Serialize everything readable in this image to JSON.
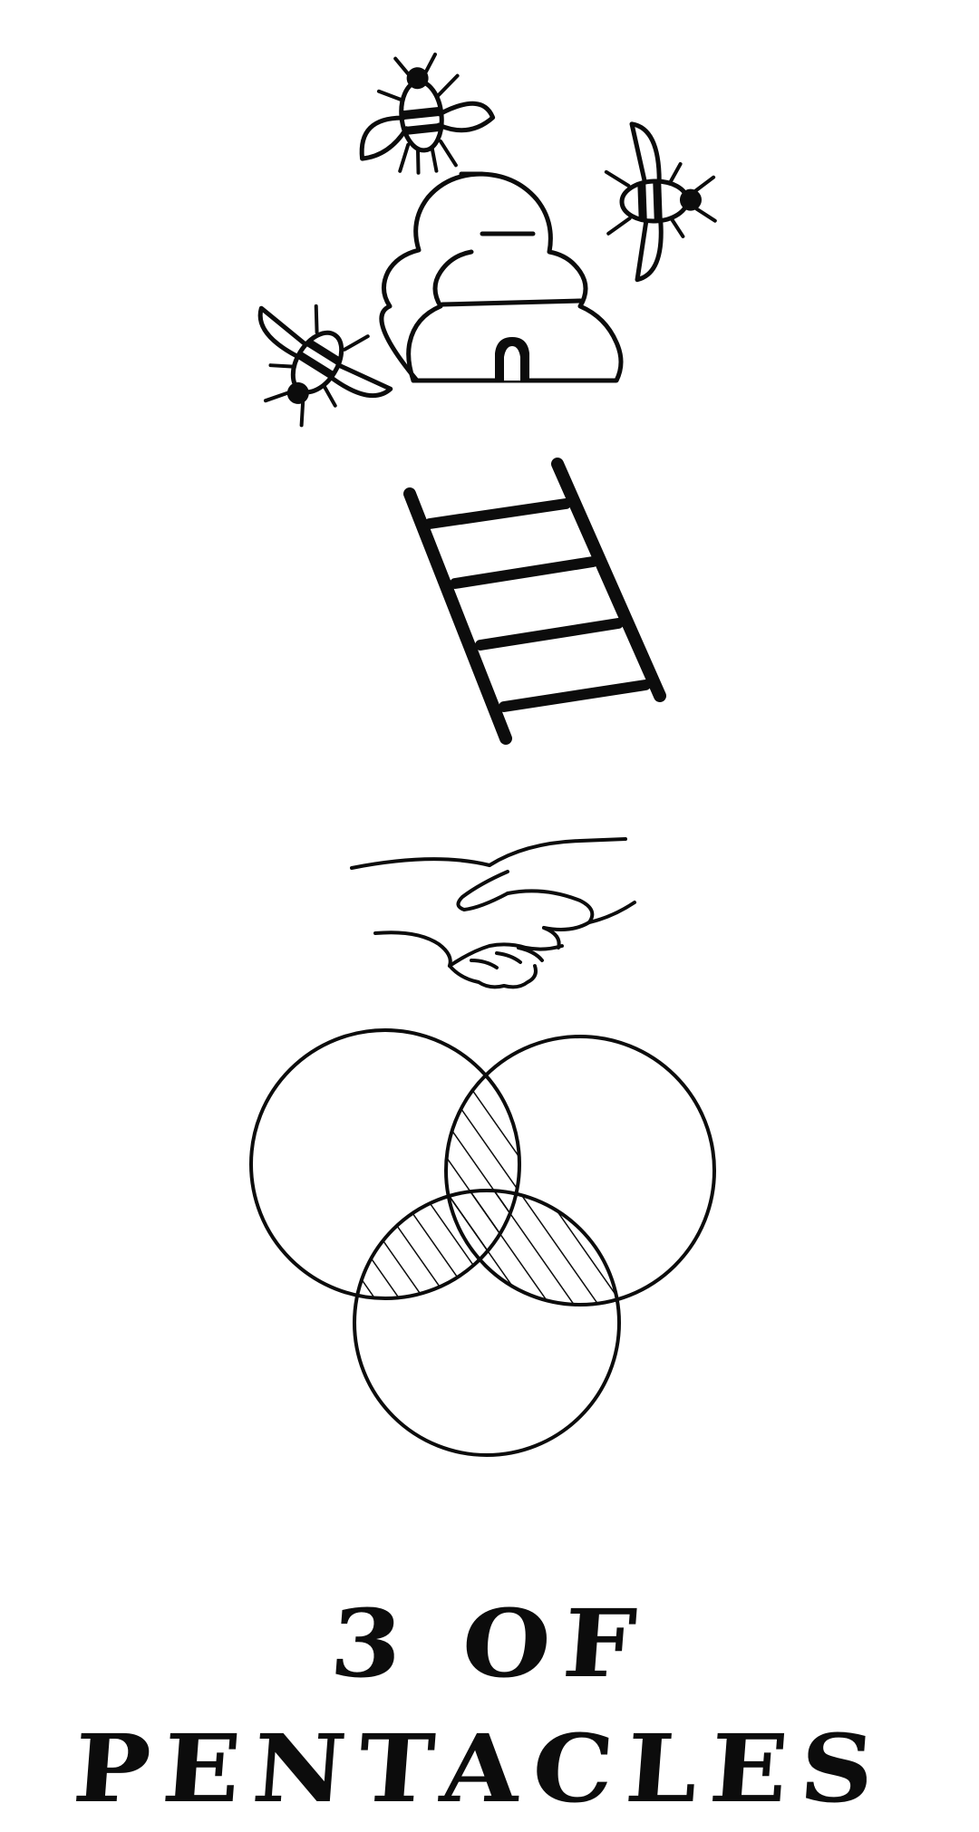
{
  "card": {
    "title": "3 OF PENTACLES"
  },
  "illustrations": {
    "top": "beehive-with-bees",
    "upper_middle": "ladder",
    "lower_middle": "handshake",
    "bottom": "three-interlocking-circles"
  },
  "colors": {
    "ink": "#0c0c0c",
    "background": "#ffffff"
  }
}
